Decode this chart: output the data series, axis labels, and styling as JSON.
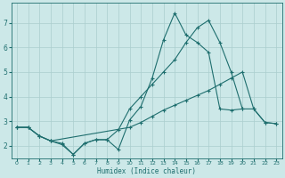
{
  "xlabel": "Humidex (Indice chaleur)",
  "xlim": [
    -0.5,
    23.5
  ],
  "ylim": [
    1.5,
    7.8
  ],
  "xticks": [
    0,
    1,
    2,
    3,
    4,
    5,
    6,
    7,
    8,
    9,
    10,
    11,
    12,
    13,
    14,
    15,
    16,
    17,
    18,
    19,
    20,
    21,
    22,
    23
  ],
  "yticks": [
    2,
    3,
    4,
    5,
    6,
    7
  ],
  "background_color": "#cce8e8",
  "grid_color": "#aacece",
  "line_color": "#1e6e6e",
  "line1_x": [
    0,
    1,
    2,
    3,
    4,
    5,
    6,
    7,
    8,
    9,
    10,
    11,
    12,
    13,
    14,
    15,
    16,
    17,
    18,
    19,
    20,
    21,
    22,
    23
  ],
  "line1_y": [
    2.75,
    2.75,
    2.4,
    2.2,
    2.1,
    1.65,
    2.1,
    2.25,
    2.25,
    1.85,
    3.05,
    3.6,
    4.75,
    6.3,
    7.4,
    6.5,
    6.2,
    5.8,
    3.5,
    3.45,
    3.5,
    3.5,
    2.95,
    2.9
  ],
  "line2_x": [
    0,
    1,
    2,
    3,
    4,
    5,
    6,
    7,
    8,
    9,
    10,
    11,
    12,
    13,
    14,
    15,
    16,
    17,
    18,
    19,
    20
  ],
  "line2_y": [
    2.75,
    2.75,
    2.4,
    2.2,
    2.05,
    1.65,
    2.1,
    2.25,
    2.25,
    2.65,
    3.5,
    4.0,
    4.5,
    5.0,
    5.5,
    6.2,
    6.8,
    7.1,
    6.2,
    5.0,
    3.5
  ],
  "line3_x": [
    0,
    1,
    2,
    3,
    10,
    11,
    12,
    13,
    14,
    15,
    16,
    17,
    18,
    19,
    20,
    21,
    22,
    23
  ],
  "line3_y": [
    2.75,
    2.75,
    2.4,
    2.2,
    2.75,
    2.95,
    3.2,
    3.45,
    3.65,
    3.85,
    4.05,
    4.25,
    4.5,
    4.75,
    5.0,
    3.5,
    2.95,
    2.9
  ]
}
